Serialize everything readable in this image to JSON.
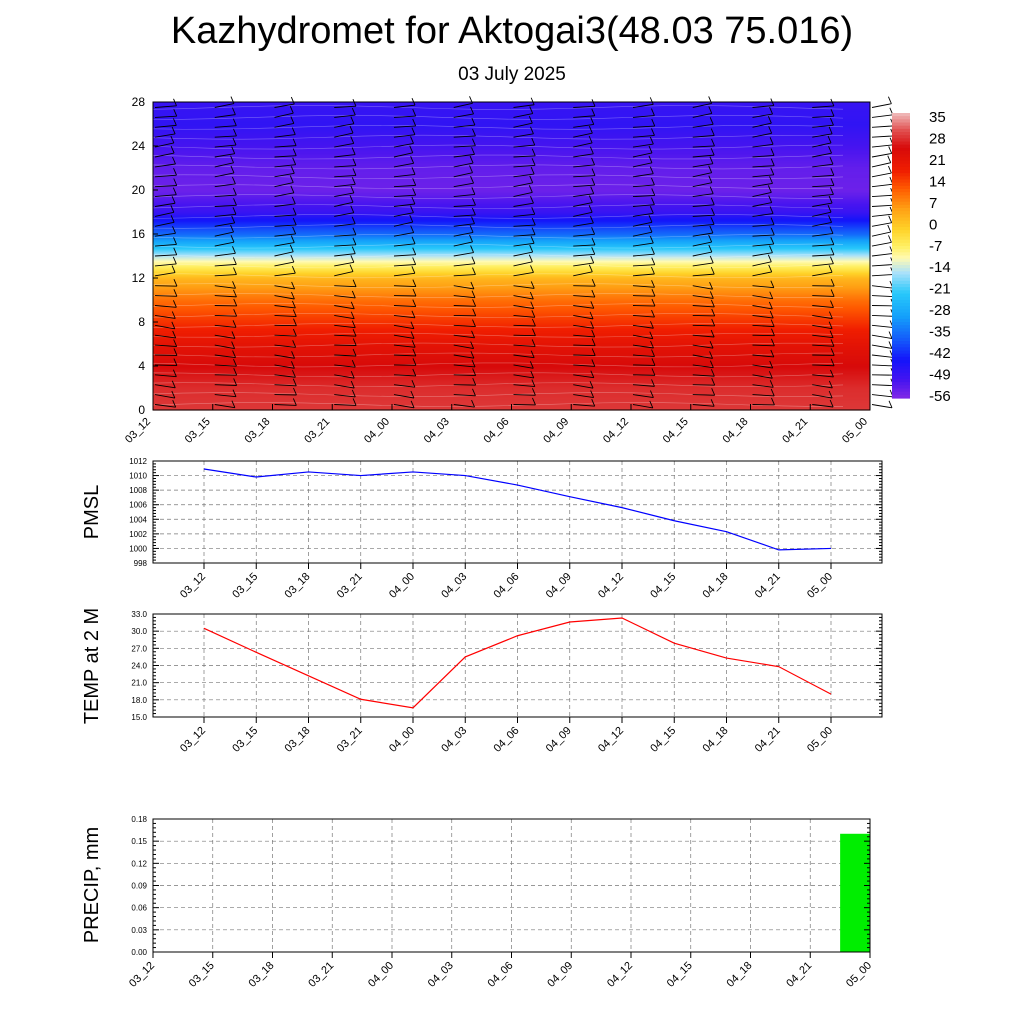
{
  "title": "Kazhydromet for Aktogai3(48.03 75.016)",
  "subtitle": "03 July 2025",
  "chart_data": [
    {
      "type": "heatmap",
      "title": "",
      "xlabel": "",
      "ylabel": "",
      "x_ticks": [
        "03_12",
        "03_15",
        "03_18",
        "03_21",
        "04_00",
        "04_03",
        "04_06",
        "04_09",
        "04_12",
        "04_15",
        "04_18",
        "04_21",
        "05_00"
      ],
      "y_ticks": [
        0,
        4,
        8,
        12,
        16,
        20,
        24,
        28
      ],
      "ylim": [
        0,
        28
      ],
      "colorbar_labels": [
        "35",
        "28",
        "21",
        "14",
        "7",
        "0",
        "-7",
        "-14",
        "-21",
        "-28",
        "-35",
        "-42",
        "-49",
        "-56"
      ],
      "colorbar_range": [
        -60,
        38
      ],
      "levels": [
        0,
        2,
        4,
        6,
        8,
        10,
        12,
        14,
        16,
        18,
        20,
        22,
        24,
        26,
        28
      ],
      "temperature_profile_by_level": [
        30,
        29,
        26,
        22,
        16,
        10,
        2,
        -16,
        -38,
        -52,
        -58,
        -57,
        -54,
        -51,
        -52
      ],
      "wind_barbs": true
    },
    {
      "type": "line",
      "ylabel": "PMSL",
      "ylim": [
        998,
        1012
      ],
      "y_ticks": [
        "998",
        "1000",
        "1002",
        "1004",
        "1006",
        "1008",
        "1010",
        "1012"
      ],
      "categories": [
        "03_12",
        "03_15",
        "03_18",
        "03_21",
        "04_00",
        "04_03",
        "04_06",
        "04_09",
        "04_12",
        "04_15",
        "04_18",
        "04_21",
        "05_00"
      ],
      "series": [
        {
          "values": [
            1010.9,
            1009.8,
            1010.5,
            1010.0,
            1010.5,
            1010.0,
            1008.7,
            1007.1,
            1005.6,
            1003.8,
            1002.3,
            999.8,
            1000.0
          ],
          "color": "#0000ff"
        }
      ]
    },
    {
      "type": "line",
      "ylabel": "TEMP at 2 M",
      "ylim": [
        15,
        33
      ],
      "y_ticks": [
        "15.0",
        "18.0",
        "21.0",
        "24.0",
        "27.0",
        "30.0",
        "33.0"
      ],
      "categories": [
        "03_12",
        "03_15",
        "03_18",
        "03_21",
        "04_00",
        "04_03",
        "04_06",
        "04_09",
        "04_12",
        "04_15",
        "04_18",
        "04_21",
        "05_00"
      ],
      "series": [
        {
          "values": [
            30.5,
            26.3,
            22.2,
            18.1,
            16.6,
            25.5,
            29.2,
            31.6,
            32.3,
            27.9,
            25.3,
            23.8,
            19.0
          ],
          "color": "#ff0000"
        }
      ]
    },
    {
      "type": "bar",
      "ylabel": "PRECIP, mm",
      "ylim": [
        0,
        0.18
      ],
      "y_ticks": [
        "0.00",
        "0.03",
        "0.06",
        "0.09",
        "0.12",
        "0.15",
        "0.18"
      ],
      "categories": [
        "03_12",
        "03_15",
        "03_18",
        "03_21",
        "04_00",
        "04_03",
        "04_06",
        "04_09",
        "04_12",
        "04_15",
        "04_18",
        "04_21",
        "05_00"
      ],
      "series": [
        {
          "values": [
            0,
            0,
            0,
            0,
            0,
            0,
            0,
            0,
            0,
            0,
            0,
            0,
            0.16
          ],
          "color": "#00ee00"
        }
      ]
    }
  ]
}
